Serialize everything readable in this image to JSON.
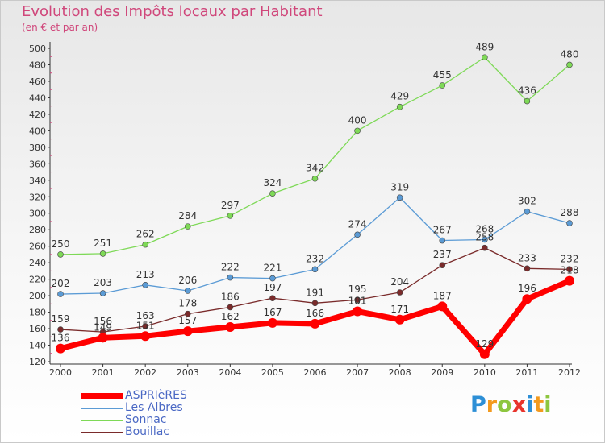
{
  "title": "Evolution des Impôts locaux par Habitant",
  "subtitle": "(en € et par an)",
  "logo_letters": [
    {
      "ch": "P",
      "color": "#2d8fd6"
    },
    {
      "ch": "r",
      "color": "#f39a1e"
    },
    {
      "ch": "o",
      "color": "#8dc63f"
    },
    {
      "ch": "x",
      "color": "#e8342c"
    },
    {
      "ch": "i",
      "color": "#2d8fd6"
    },
    {
      "ch": "t",
      "color": "#f39a1e"
    },
    {
      "ch": "i",
      "color": "#8dc63f"
    }
  ],
  "chart_data": {
    "type": "line",
    "categories": [
      "2000",
      "2001",
      "2002",
      "2003",
      "2004",
      "2005",
      "2006",
      "2007",
      "2008",
      "2009",
      "2010",
      "2011",
      "2012"
    ],
    "ylim": [
      120,
      500
    ],
    "yticks": [
      120,
      140,
      160,
      180,
      200,
      220,
      240,
      260,
      280,
      300,
      320,
      340,
      360,
      380,
      400,
      420,
      440,
      460,
      480,
      500
    ],
    "grid": false,
    "legend_position": "bottom-left",
    "series": [
      {
        "name": "ASPRIèRES",
        "color": "#ff0000",
        "values": [
          136,
          149,
          151,
          157,
          162,
          167,
          166,
          181,
          171,
          187,
          129,
          196,
          218
        ]
      },
      {
        "name": "Les Albres",
        "color": "#5b9bd5",
        "values": [
          202,
          203,
          213,
          206,
          222,
          221,
          232,
          274,
          319,
          267,
          268,
          302,
          288
        ]
      },
      {
        "name": "Sonnac",
        "color": "#7ed957",
        "values": [
          250,
          251,
          262,
          284,
          297,
          324,
          342,
          400,
          429,
          455,
          489,
          436,
          480
        ]
      },
      {
        "name": "Bouillac",
        "color": "#7a2b2b",
        "values": [
          159,
          156,
          163,
          178,
          186,
          197,
          191,
          195,
          204,
          237,
          258,
          233,
          232
        ]
      }
    ]
  }
}
